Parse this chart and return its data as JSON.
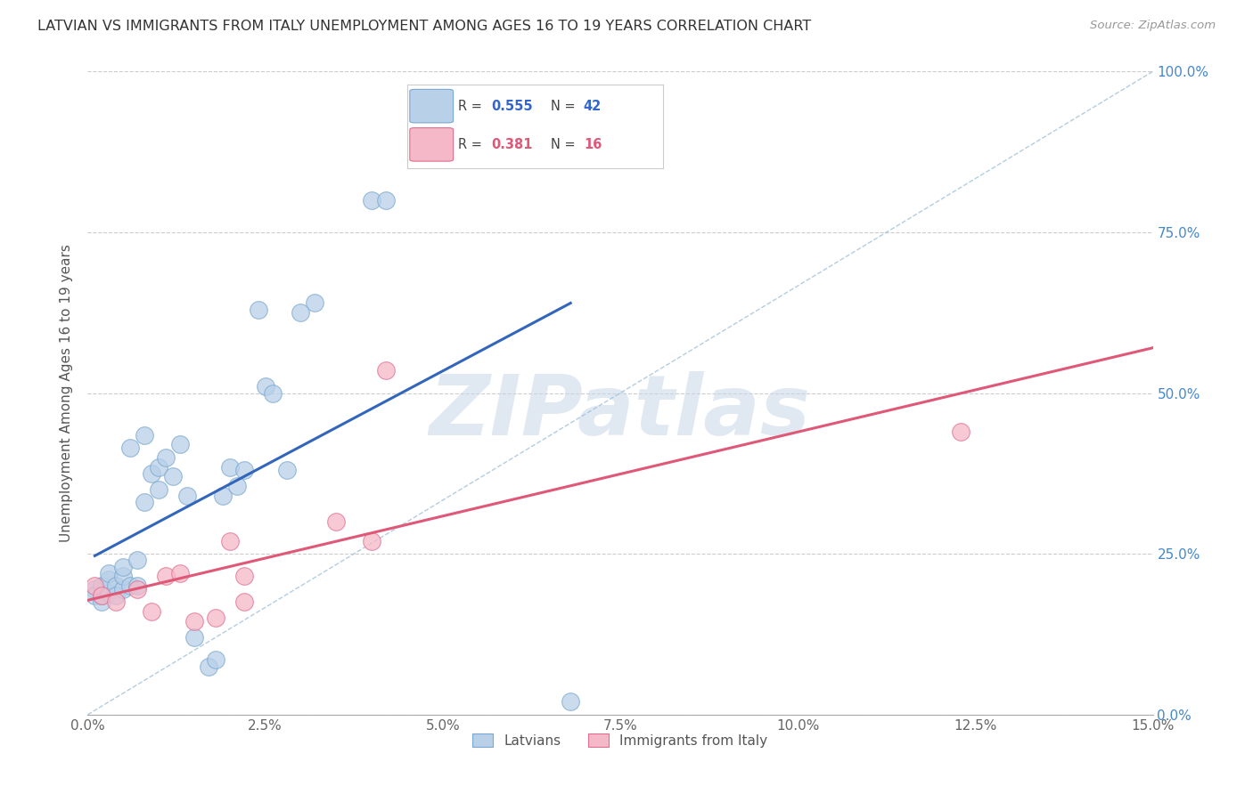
{
  "title": "LATVIAN VS IMMIGRANTS FROM ITALY UNEMPLOYMENT AMONG AGES 16 TO 19 YEARS CORRELATION CHART",
  "source": "Source: ZipAtlas.com",
  "ylabel": "Unemployment Among Ages 16 to 19 years",
  "xmin": 0.0,
  "xmax": 0.15,
  "ymin": 0.0,
  "ymax": 1.0,
  "xtick_labels": [
    "0.0%",
    "2.5%",
    "5.0%",
    "7.5%",
    "10.0%",
    "12.5%",
    "15.0%"
  ],
  "xtick_values": [
    0.0,
    0.025,
    0.05,
    0.075,
    0.1,
    0.125,
    0.15
  ],
  "ytick_labels_right": [
    "0.0%",
    "25.0%",
    "50.0%",
    "75.0%",
    "100.0%"
  ],
  "ytick_values": [
    0.0,
    0.25,
    0.5,
    0.75,
    1.0
  ],
  "latvian_color": "#b8d0e8",
  "latvian_edge": "#7aa8d0",
  "italian_color": "#f5b8c8",
  "italian_edge": "#e07090",
  "trend_latvian_color": "#3366bb",
  "trend_italian_color": "#e05878",
  "diag_color": "#a0c0d8",
  "watermark": "ZIPatlas",
  "latvians_x": [
    0.001,
    0.001,
    0.002,
    0.002,
    0.002,
    0.003,
    0.003,
    0.003,
    0.004,
    0.004,
    0.005,
    0.005,
    0.005,
    0.006,
    0.006,
    0.007,
    0.007,
    0.008,
    0.008,
    0.009,
    0.01,
    0.01,
    0.011,
    0.012,
    0.013,
    0.014,
    0.015,
    0.017,
    0.018,
    0.019,
    0.02,
    0.021,
    0.022,
    0.024,
    0.025,
    0.026,
    0.028,
    0.03,
    0.032,
    0.04,
    0.042,
    0.068
  ],
  "latvians_y": [
    0.195,
    0.185,
    0.175,
    0.185,
    0.2,
    0.19,
    0.21,
    0.22,
    0.2,
    0.185,
    0.195,
    0.215,
    0.23,
    0.2,
    0.415,
    0.2,
    0.24,
    0.33,
    0.435,
    0.375,
    0.35,
    0.385,
    0.4,
    0.37,
    0.42,
    0.34,
    0.12,
    0.075,
    0.085,
    0.34,
    0.385,
    0.355,
    0.38,
    0.63,
    0.51,
    0.5,
    0.38,
    0.625,
    0.64,
    0.8,
    0.8,
    0.02
  ],
  "italians_x": [
    0.001,
    0.002,
    0.004,
    0.007,
    0.009,
    0.011,
    0.013,
    0.015,
    0.018,
    0.02,
    0.022,
    0.022,
    0.035,
    0.04,
    0.042,
    0.123
  ],
  "italians_y": [
    0.2,
    0.185,
    0.175,
    0.195,
    0.16,
    0.215,
    0.22,
    0.145,
    0.15,
    0.27,
    0.175,
    0.215,
    0.3,
    0.27,
    0.535,
    0.44
  ]
}
